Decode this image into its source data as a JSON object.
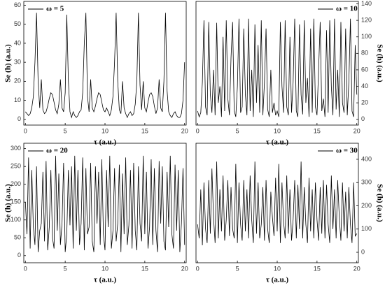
{
  "chart_data": [
    {
      "type": "line",
      "xlabel": "τ (a.u.)",
      "ylabel": "Se (h) (a.u.)",
      "yaxis_position": "left",
      "legend": "upper left",
      "xlim": [
        -0.2,
        20.2
      ],
      "xticks": [
        0,
        5,
        10,
        15,
        20
      ],
      "ylim": [
        -3,
        62
      ],
      "yticks": [
        0,
        10,
        20,
        30,
        40,
        50,
        60
      ],
      "x": [
        0,
        0.2,
        0.4,
        0.6,
        0.8,
        1,
        1.2,
        1.4,
        1.6,
        1.8,
        2,
        2.2,
        2.4,
        2.6,
        2.8,
        3,
        3.2,
        3.4,
        3.6,
        3.8,
        4,
        4.2,
        4.4,
        4.6,
        4.8,
        5,
        5.2,
        5.4,
        5.6,
        5.8,
        6,
        6.2,
        6.4,
        6.6,
        6.8,
        7,
        7.2,
        7.4,
        7.6,
        7.8,
        8,
        8.2,
        8.4,
        8.6,
        8.8,
        9,
        9.2,
        9.4,
        9.6,
        9.8,
        10,
        10.2,
        10.4,
        10.6,
        10.8,
        11,
        11.2,
        11.4,
        11.6,
        11.8,
        12,
        12.2,
        12.4,
        12.6,
        12.8,
        13,
        13.2,
        13.4,
        13.6,
        13.8,
        14,
        14.2,
        14.4,
        14.6,
        14.8,
        15,
        15.2,
        15.4,
        15.6,
        15.8,
        16,
        16.2,
        16.4,
        16.6,
        16.8,
        17,
        17.2,
        17.4,
        17.6,
        17.8,
        18,
        18.2,
        18.4,
        18.6,
        18.8,
        19,
        19.2,
        19.4,
        19.6,
        19.8,
        20
      ],
      "series": [
        {
          "name": "ω = 5",
          "color": "#000000",
          "values": [
            4,
            3,
            2,
            3,
            6,
            12,
            30,
            56,
            20,
            6,
            21,
            5,
            3,
            4,
            7,
            11,
            14,
            13,
            9,
            5,
            3,
            8,
            21,
            6,
            4,
            14,
            55,
            20,
            4,
            1,
            4,
            2,
            1,
            2,
            4,
            5,
            14,
            40,
            56,
            12,
            4,
            21,
            6,
            4,
            7,
            11,
            14,
            13,
            9,
            5,
            4,
            6,
            4,
            2,
            5,
            12,
            30,
            56,
            20,
            5,
            3,
            20,
            6,
            3,
            1,
            3,
            4,
            2,
            3,
            8,
            20,
            56,
            18,
            5,
            20,
            6,
            4,
            9,
            13,
            14,
            12,
            7,
            3,
            6,
            21,
            6,
            4,
            20,
            56,
            15,
            4,
            2,
            1,
            3,
            4,
            2,
            1,
            1,
            3,
            10,
            30
          ]
        }
      ]
    },
    {
      "type": "line",
      "xlabel": "τ (a.u.)",
      "ylabel": "Se (h) (a.u.)",
      "yaxis_position": "right",
      "legend": "upper right",
      "xlim": [
        -0.2,
        20.2
      ],
      "xticks": [
        0,
        5,
        10,
        15,
        20
      ],
      "ylim": [
        -7,
        143
      ],
      "yticks": [
        0,
        20,
        40,
        60,
        80,
        100,
        120,
        140
      ],
      "x": [
        0,
        0.2,
        0.4,
        0.6,
        0.8,
        1,
        1.2,
        1.4,
        1.6,
        1.8,
        2,
        2.2,
        2.4,
        2.6,
        2.8,
        3,
        3.2,
        3.4,
        3.6,
        3.8,
        4,
        4.2,
        4.4,
        4.6,
        4.8,
        5,
        5.2,
        5.4,
        5.6,
        5.8,
        6,
        6.2,
        6.4,
        6.6,
        6.8,
        7,
        7.2,
        7.4,
        7.6,
        7.8,
        8,
        8.2,
        8.4,
        8.6,
        8.8,
        9,
        9.2,
        9.4,
        9.6,
        9.8,
        10,
        10.2,
        10.4,
        10.6,
        10.8,
        11,
        11.2,
        11.4,
        11.6,
        11.8,
        12,
        12.2,
        12.4,
        12.6,
        12.8,
        13,
        13.2,
        13.4,
        13.6,
        13.8,
        14,
        14.2,
        14.4,
        14.6,
        14.8,
        15,
        15.2,
        15.4,
        15.6,
        15.8,
        16,
        16.2,
        16.4,
        16.6,
        16.8,
        17,
        17.2,
        17.4,
        17.6,
        17.8,
        18,
        18.2,
        18.4,
        18.6,
        18.8,
        19,
        19.2,
        19.4,
        19.6,
        19.8,
        20
      ],
      "series": [
        {
          "name": "ω = 10",
          "color": "#000000",
          "values": [
            10,
            3,
            8,
            45,
            120,
            15,
            5,
            118,
            30,
            8,
            60,
            5,
            117,
            20,
            40,
            3,
            100,
            10,
            120,
            25,
            5,
            75,
            118,
            10,
            3,
            40,
            122,
            8,
            15,
            110,
            30,
            5,
            122,
            10,
            60,
            3,
            115,
            20,
            90,
            8,
            120,
            5,
            45,
            110,
            12,
            3,
            60,
            8,
            20,
            5,
            10,
            3,
            118,
            40,
            8,
            120,
            15,
            5,
            100,
            8,
            45,
            122,
            10,
            3,
            115,
            30,
            6,
            120,
            20,
            50,
            3,
            110,
            8,
            122,
            15,
            5,
            60,
            118,
            10,
            25,
            3,
            108,
            8,
            120,
            40,
            5,
            122,
            12,
            60,
            3,
            118,
            20,
            8,
            110,
            5,
            45,
            122,
            10,
            3,
            90,
            30
          ]
        }
      ]
    },
    {
      "type": "line",
      "xlabel": "τ (a.u.)",
      "ylabel": "Se (h) (a.u.)",
      "yaxis_position": "left",
      "legend": "upper left",
      "xlim": [
        -0.2,
        20.2
      ],
      "xticks": [
        0,
        5,
        10,
        15,
        20
      ],
      "ylim": [
        -20,
        315
      ],
      "yticks": [
        0,
        50,
        100,
        150,
        200,
        250,
        300
      ],
      "x": [
        0,
        0.2,
        0.4,
        0.6,
        0.8,
        1,
        1.2,
        1.4,
        1.6,
        1.8,
        2,
        2.2,
        2.4,
        2.6,
        2.8,
        3,
        3.2,
        3.4,
        3.6,
        3.8,
        4,
        4.2,
        4.4,
        4.6,
        4.8,
        5,
        5.2,
        5.4,
        5.6,
        5.8,
        6,
        6.2,
        6.4,
        6.6,
        6.8,
        7,
        7.2,
        7.4,
        7.6,
        7.8,
        8,
        8.2,
        8.4,
        8.6,
        8.8,
        9,
        9.2,
        9.4,
        9.6,
        9.8,
        10,
        10.2,
        10.4,
        10.6,
        10.8,
        11,
        11.2,
        11.4,
        11.6,
        11.8,
        12,
        12.2,
        12.4,
        12.6,
        12.8,
        13,
        13.2,
        13.4,
        13.6,
        13.8,
        14,
        14.2,
        14.4,
        14.6,
        14.8,
        15,
        15.2,
        15.4,
        15.6,
        15.8,
        16,
        16.2,
        16.4,
        16.6,
        16.8,
        17,
        17.2,
        17.4,
        17.6,
        17.8,
        18,
        18.2,
        18.4,
        18.6,
        18.8,
        19,
        19.2,
        19.4,
        19.6,
        19.8,
        20
      ],
      "series": [
        {
          "name": "ω = 20",
          "color": "#000000",
          "values": [
            150,
            60,
            275,
            20,
            240,
            80,
            30,
            250,
            10,
            70,
            90,
            235,
            40,
            265,
            15,
            80,
            240,
            50,
            20,
            280,
            70,
            230,
            30,
            90,
            260,
            10,
            60,
            240,
            85,
            250,
            20,
            280,
            70,
            240,
            30,
            90,
            275,
            15,
            245,
            60,
            80,
            260,
            40,
            10,
            250,
            90,
            235,
            30,
            270,
            60,
            15,
            240,
            80,
            280,
            20,
            70,
            245,
            40,
            90,
            255,
            10,
            230,
            60,
            275,
            30,
            85,
            240,
            20,
            260,
            70,
            15,
            250,
            90,
            40,
            280,
            60,
            235,
            20,
            80,
            270,
            30,
            245,
            70,
            10,
            265,
            90,
            250,
            40,
            15,
            235,
            80,
            280,
            60,
            20,
            255,
            70,
            240,
            10,
            90,
            245,
            30
          ]
        }
      ]
    },
    {
      "type": "line",
      "xlabel": "τ (a.u.)",
      "ylabel": "Se (h) (a.u.)",
      "yaxis_position": "right",
      "legend": "upper right",
      "xlim": [
        -0.2,
        20.2
      ],
      "xticks": [
        0,
        5,
        10,
        15,
        20
      ],
      "ylim": [
        -45,
        469
      ],
      "yticks": [
        0,
        100,
        200,
        300,
        400
      ],
      "x": [
        0,
        0.2,
        0.4,
        0.6,
        0.8,
        1,
        1.2,
        1.4,
        1.6,
        1.8,
        2,
        2.2,
        2.4,
        2.6,
        2.8,
        3,
        3.2,
        3.4,
        3.6,
        3.8,
        4,
        4.2,
        4.4,
        4.6,
        4.8,
        5,
        5.2,
        5.4,
        5.6,
        5.8,
        6,
        6.2,
        6.4,
        6.6,
        6.8,
        7,
        7.2,
        7.4,
        7.6,
        7.8,
        8,
        8.2,
        8.4,
        8.6,
        8.8,
        9,
        9.2,
        9.4,
        9.6,
        9.8,
        10,
        10.2,
        10.4,
        10.6,
        10.8,
        11,
        11.2,
        11.4,
        11.6,
        11.8,
        12,
        12.2,
        12.4,
        12.6,
        12.8,
        13,
        13.2,
        13.4,
        13.6,
        13.8,
        14,
        14.2,
        14.4,
        14.6,
        14.8,
        15,
        15.2,
        15.4,
        15.6,
        15.8,
        16,
        16.2,
        16.4,
        16.6,
        16.8,
        17,
        17.2,
        17.4,
        17.6,
        17.8,
        18,
        18.2,
        18.4,
        18.6,
        18.8,
        19,
        19.2,
        19.4,
        19.6,
        19.8,
        20
      ],
      "series": [
        {
          "name": "ω = 30",
          "color": "#000000",
          "values": [
            120,
            60,
            270,
            30,
            300,
            100,
            40,
            310,
            80,
            360,
            150,
            40,
            390,
            60,
            270,
            90,
            330,
            50,
            140,
            310,
            70,
            280,
            100,
            60,
            380,
            40,
            300,
            120,
            50,
            310,
            90,
            270,
            60,
            330,
            140,
            40,
            390,
            80,
            300,
            60,
            120,
            280,
            50,
            310,
            100,
            40,
            260,
            150,
            70,
            320,
            90,
            380,
            40,
            300,
            130,
            60,
            330,
            80,
            270,
            50,
            140,
            310,
            60,
            290,
            100,
            390,
            60,
            280,
            120,
            40,
            320,
            90,
            270,
            60,
            300,
            140,
            50,
            280,
            80,
            310,
            60,
            290,
            120,
            40,
            330,
            100,
            270,
            60,
            310,
            150,
            50,
            300,
            90,
            260,
            60,
            280,
            120,
            40,
            300,
            70,
            80
          ]
        }
      ]
    }
  ]
}
